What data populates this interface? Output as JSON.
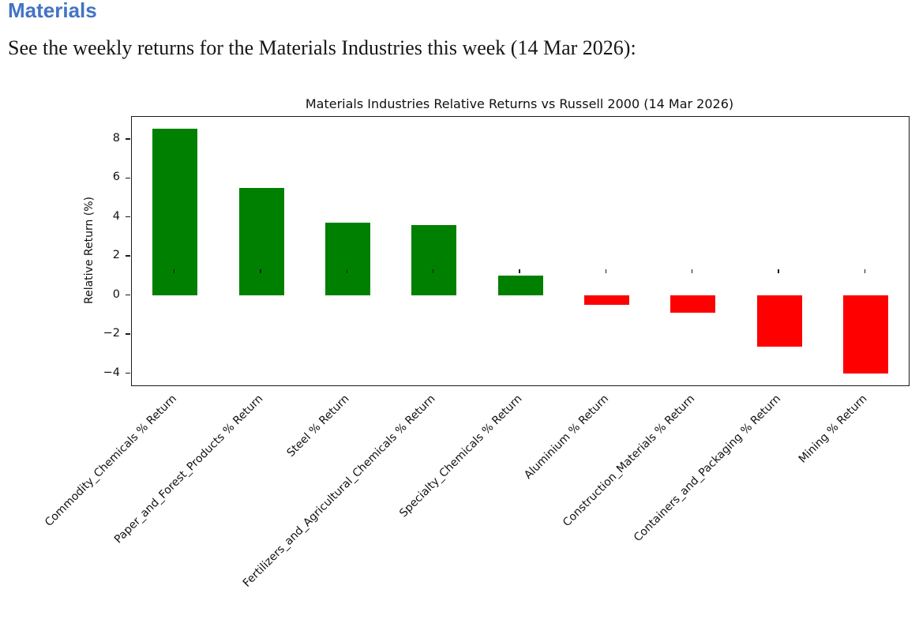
{
  "page": {
    "heading": "Materials",
    "heading_color": "#4273c4",
    "intro": "See the weekly returns for the Materials Industries this week (14 Mar 2026):"
  },
  "chart_data": {
    "type": "bar",
    "title": "Materials Industries Relative Returns vs Russell 2000 (14 Mar 2026)",
    "xlabel": "",
    "ylabel": "Relative Return (%)",
    "categories": [
      "Commodity_Chemicals % Return",
      "Paper_and_Forest_Products % Return",
      "Steel % Return",
      "Fertilizers_and_Agricultural_Chemicals % Return",
      "Specialty_Chemicals % Return",
      "Aluminium % Return",
      "Construction_Materials % Return",
      "Containers_and_Packaging % Return",
      "Mining % Return"
    ],
    "values": [
      8.5,
      5.5,
      3.7,
      3.6,
      1.0,
      -0.5,
      -0.9,
      -2.65,
      -4.0
    ],
    "ylim": [
      -4.625,
      9.125
    ],
    "yticks": [
      8,
      6,
      4,
      2,
      0,
      -2,
      -4
    ],
    "grid": false,
    "legend": null,
    "positive_color": "#008000",
    "negative_color": "#ff0000",
    "bar_color_rule": "green for positive returns, red for negative returns",
    "xtick_rotation_deg": 45
  }
}
